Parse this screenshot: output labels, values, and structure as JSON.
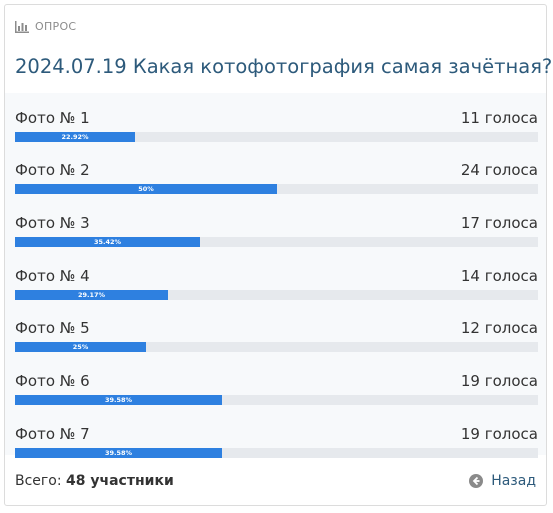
{
  "header": {
    "label": "ОПРОС",
    "icon": "bar-chart-icon"
  },
  "poll": {
    "title": "2024.07.19 Какая котофотография самая зачётная?",
    "options": [
      {
        "label": "Фото № 1",
        "votes": "11 голоса",
        "percent_label": "22.92%",
        "percent": 22.92
      },
      {
        "label": "Фото № 2",
        "votes": "24 голоса",
        "percent_label": "50%",
        "percent": 50
      },
      {
        "label": "Фото № 3",
        "votes": "17 голоса",
        "percent_label": "35.42%",
        "percent": 35.42
      },
      {
        "label": "Фото № 4",
        "votes": "14 голоса",
        "percent_label": "29.17%",
        "percent": 29.17
      },
      {
        "label": "Фото № 5",
        "votes": "12 голоса",
        "percent_label": "25%",
        "percent": 25
      },
      {
        "label": "Фото № 6",
        "votes": "19 голоса",
        "percent_label": "39.58%",
        "percent": 39.58
      },
      {
        "label": "Фото № 7",
        "votes": "19 голоса",
        "percent_label": "39.58%",
        "percent": 39.58
      }
    ]
  },
  "footer": {
    "total_label": "Всего:",
    "total_value": "48 участники",
    "back_label": "Назад",
    "back_icon": "arrow-left-circle-icon"
  },
  "colors": {
    "accent": "#2e80e0",
    "title": "#2d5a7b",
    "track": "#e6e9ed"
  }
}
